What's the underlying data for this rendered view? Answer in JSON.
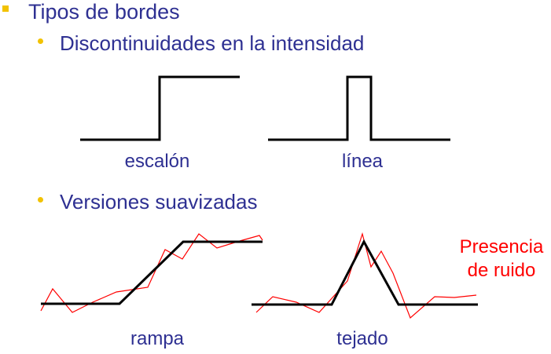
{
  "heading": "Tipos de bordes",
  "section1": {
    "title": "Discontinuidades en la intensidad",
    "captions": [
      "escalón",
      "línea"
    ]
  },
  "section2": {
    "title": "Versiones suavizadas",
    "captions": [
      "rampa",
      "tejado"
    ]
  },
  "noise_note": {
    "line1": "Presencia",
    "line2": "de ruido"
  },
  "colors": {
    "bullet": "#f2c200",
    "text": "#2e3092",
    "edge_line": "#000000",
    "noise_line": "#ff0000"
  }
}
